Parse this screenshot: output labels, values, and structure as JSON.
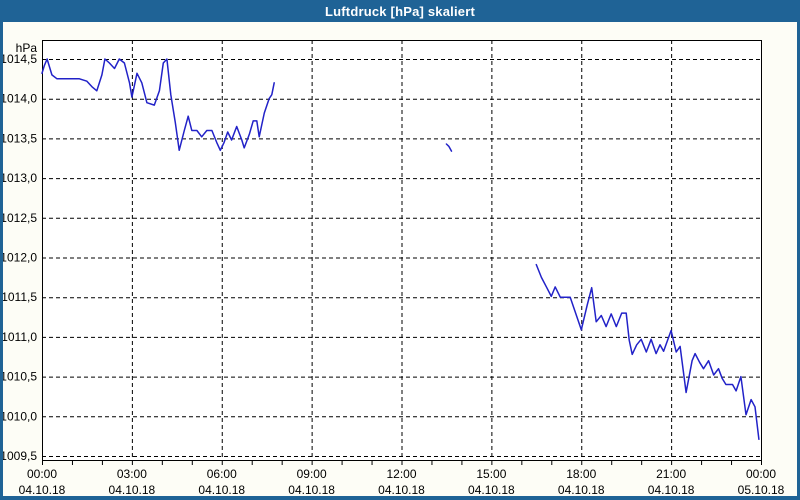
{
  "window": {
    "title": "Luftdruck [hPa] skaliert"
  },
  "colors": {
    "title_bar": "#1f6396",
    "frame": "#1f6396",
    "background": "#fdfdf6",
    "plot_background": "#ffffff",
    "grid": "#000000",
    "line": "#2222c8",
    "text": "#000000"
  },
  "chart_data": {
    "type": "line",
    "title": "Luftdruck [hPa] skaliert",
    "xlabel": "",
    "ylabel": "hPa",
    "unit_label": "hPa",
    "ylim": [
      1009.5,
      1014.5
    ],
    "xlim_hours": [
      0,
      24
    ],
    "grid": "dashed",
    "legend": "none",
    "y_ticks": [
      {
        "value": 1014.5,
        "label": "1014,5"
      },
      {
        "value": 1014.0,
        "label": "1014,0"
      },
      {
        "value": 1013.5,
        "label": "1013,5"
      },
      {
        "value": 1013.0,
        "label": "1013,0"
      },
      {
        "value": 1012.5,
        "label": "1012,5"
      },
      {
        "value": 1012.0,
        "label": "1012,0"
      },
      {
        "value": 1011.5,
        "label": "1011,5"
      },
      {
        "value": 1011.0,
        "label": "1011,0"
      },
      {
        "value": 1010.5,
        "label": "1010,5"
      },
      {
        "value": 1010.0,
        "label": "1010,0"
      },
      {
        "value": 1009.5,
        "label": "1009,5"
      }
    ],
    "x_ticks": [
      {
        "hour": 0,
        "time": "00:00",
        "date": "04.10.18"
      },
      {
        "hour": 3,
        "time": "03:00",
        "date": "04.10.18"
      },
      {
        "hour": 6,
        "time": "06:00",
        "date": "04.10.18"
      },
      {
        "hour": 9,
        "time": "09:00",
        "date": "04.10.18"
      },
      {
        "hour": 12,
        "time": "12:00",
        "date": "04.10.18"
      },
      {
        "hour": 15,
        "time": "15:00",
        "date": "04.10.18"
      },
      {
        "hour": 18,
        "time": "18:00",
        "date": "04.10.18"
      },
      {
        "hour": 21,
        "time": "21:00",
        "date": "04.10.18"
      },
      {
        "hour": 24,
        "time": "00:00",
        "date": "05.10.18"
      }
    ],
    "minor_tick_every_hours": 1,
    "gridline_every_hours": 3,
    "series": [
      {
        "name": "Luftdruck",
        "color": "#2222c8",
        "segments": [
          [
            [
              0.0,
              1014.32
            ],
            [
              0.08,
              1014.42
            ],
            [
              0.17,
              1014.5
            ],
            [
              0.33,
              1014.3
            ],
            [
              0.5,
              1014.25
            ],
            [
              0.75,
              1014.25
            ],
            [
              1.0,
              1014.25
            ],
            [
              1.25,
              1014.25
            ],
            [
              1.5,
              1014.22
            ],
            [
              1.67,
              1014.15
            ],
            [
              1.83,
              1014.1
            ],
            [
              2.0,
              1014.3
            ],
            [
              2.1,
              1014.5
            ],
            [
              2.25,
              1014.45
            ],
            [
              2.42,
              1014.38
            ],
            [
              2.58,
              1014.5
            ],
            [
              2.75,
              1014.45
            ],
            [
              2.92,
              1014.2
            ],
            [
              3.0,
              1014.02
            ],
            [
              3.17,
              1014.32
            ],
            [
              3.33,
              1014.2
            ],
            [
              3.5,
              1013.95
            ],
            [
              3.75,
              1013.92
            ],
            [
              3.92,
              1014.1
            ],
            [
              4.05,
              1014.45
            ],
            [
              4.17,
              1014.5
            ],
            [
              4.3,
              1014.05
            ],
            [
              4.45,
              1013.7
            ],
            [
              4.58,
              1013.35
            ],
            [
              4.75,
              1013.6
            ],
            [
              4.88,
              1013.78
            ],
            [
              5.0,
              1013.6
            ],
            [
              5.17,
              1013.6
            ],
            [
              5.33,
              1013.52
            ],
            [
              5.5,
              1013.6
            ],
            [
              5.67,
              1013.6
            ],
            [
              5.83,
              1013.45
            ],
            [
              5.95,
              1013.35
            ],
            [
              6.08,
              1013.45
            ],
            [
              6.2,
              1013.58
            ],
            [
              6.33,
              1013.48
            ],
            [
              6.5,
              1013.65
            ],
            [
              6.67,
              1013.48
            ],
            [
              6.75,
              1013.38
            ],
            [
              6.92,
              1013.55
            ],
            [
              7.05,
              1013.72
            ],
            [
              7.17,
              1013.72
            ],
            [
              7.25,
              1013.52
            ],
            [
              7.42,
              1013.82
            ],
            [
              7.58,
              1014.0
            ],
            [
              7.67,
              1014.05
            ],
            [
              7.75,
              1014.2
            ]
          ],
          [
            [
              13.5,
              1013.43
            ],
            [
              13.58,
              1013.4
            ],
            [
              13.67,
              1013.34
            ]
          ],
          [
            [
              16.5,
              1011.91
            ],
            [
              16.67,
              1011.75
            ],
            [
              16.85,
              1011.62
            ],
            [
              17.0,
              1011.51
            ],
            [
              17.13,
              1011.63
            ],
            [
              17.3,
              1011.5
            ],
            [
              17.63,
              1011.5
            ],
            [
              18.0,
              1011.09
            ],
            [
              18.2,
              1011.4
            ],
            [
              18.35,
              1011.62
            ],
            [
              18.5,
              1011.19
            ],
            [
              18.67,
              1011.27
            ],
            [
              18.83,
              1011.13
            ],
            [
              19.0,
              1011.29
            ],
            [
              19.17,
              1011.13
            ],
            [
              19.35,
              1011.3
            ],
            [
              19.5,
              1011.3
            ],
            [
              19.6,
              1010.96
            ],
            [
              19.7,
              1010.78
            ],
            [
              19.85,
              1010.9
            ],
            [
              20.0,
              1010.97
            ],
            [
              20.17,
              1010.81
            ],
            [
              20.33,
              1010.97
            ],
            [
              20.5,
              1010.79
            ],
            [
              20.63,
              1010.9
            ],
            [
              20.75,
              1010.82
            ],
            [
              21.0,
              1011.08
            ],
            [
              21.17,
              1010.81
            ],
            [
              21.3,
              1010.88
            ],
            [
              21.5,
              1010.3
            ],
            [
              21.7,
              1010.7
            ],
            [
              21.8,
              1010.79
            ],
            [
              21.95,
              1010.68
            ],
            [
              22.08,
              1010.6
            ],
            [
              22.25,
              1010.7
            ],
            [
              22.42,
              1010.52
            ],
            [
              22.58,
              1010.6
            ],
            [
              22.7,
              1010.48
            ],
            [
              22.83,
              1010.4
            ],
            [
              23.05,
              1010.4
            ],
            [
              23.17,
              1010.32
            ],
            [
              23.33,
              1010.5
            ],
            [
              23.5,
              1010.02
            ],
            [
              23.67,
              1010.21
            ],
            [
              23.8,
              1010.12
            ],
            [
              23.93,
              1009.71
            ]
          ]
        ]
      }
    ]
  }
}
